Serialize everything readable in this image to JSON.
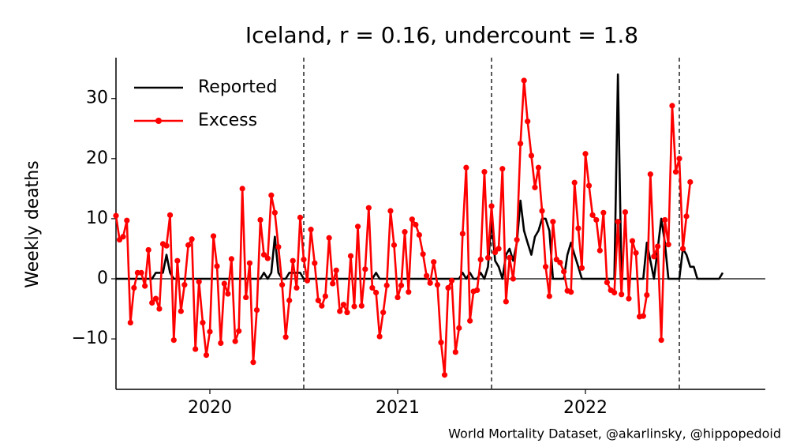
{
  "chart_data": {
    "type": "line",
    "title": "Iceland, r = 0.16, undercount = 1.8",
    "ylabel": "Weekly deaths",
    "source": "World Mortality Dataset, @akarlinsky, @hippopedoid",
    "legend": "upper left",
    "xlim": [
      2020,
      2023.458
    ],
    "ylim": [
      -18.4,
      36.8
    ],
    "xticks": [
      {
        "value": 2020.5,
        "label": "2020"
      },
      {
        "value": 2021.5,
        "label": "2021"
      },
      {
        "value": 2022.5,
        "label": "2022"
      }
    ],
    "yticks": [
      {
        "value": -10,
        "label": "−10"
      },
      0,
      10,
      20,
      30
    ],
    "vlines": [
      2021,
      2022,
      2023
    ],
    "hline": 0,
    "x": [
      2020.0,
      2020.019,
      2020.038,
      2020.058,
      2020.077,
      2020.096,
      2020.115,
      2020.135,
      2020.154,
      2020.173,
      2020.192,
      2020.212,
      2020.231,
      2020.25,
      2020.269,
      2020.288,
      2020.308,
      2020.327,
      2020.346,
      2020.365,
      2020.385,
      2020.404,
      2020.423,
      2020.442,
      2020.462,
      2020.481,
      2020.5,
      2020.519,
      2020.538,
      2020.558,
      2020.577,
      2020.596,
      2020.615,
      2020.635,
      2020.654,
      2020.673,
      2020.692,
      2020.712,
      2020.731,
      2020.75,
      2020.769,
      2020.788,
      2020.808,
      2020.827,
      2020.846,
      2020.865,
      2020.885,
      2020.904,
      2020.923,
      2020.942,
      2020.962,
      2020.981,
      2021.0,
      2021.019,
      2021.038,
      2021.058,
      2021.077,
      2021.096,
      2021.115,
      2021.135,
      2021.154,
      2021.173,
      2021.192,
      2021.212,
      2021.231,
      2021.25,
      2021.269,
      2021.288,
      2021.308,
      2021.327,
      2021.346,
      2021.365,
      2021.385,
      2021.404,
      2021.423,
      2021.442,
      2021.462,
      2021.481,
      2021.5,
      2021.519,
      2021.538,
      2021.558,
      2021.577,
      2021.596,
      2021.615,
      2021.635,
      2021.654,
      2021.673,
      2021.692,
      2021.712,
      2021.731,
      2021.75,
      2021.769,
      2021.788,
      2021.808,
      2021.827,
      2021.846,
      2021.865,
      2021.885,
      2021.904,
      2021.923,
      2021.942,
      2021.962,
      2021.981,
      2022.0,
      2022.019,
      2022.038,
      2022.058,
      2022.077,
      2022.096,
      2022.115,
      2022.135,
      2022.154,
      2022.173,
      2022.192,
      2022.212,
      2022.231,
      2022.25,
      2022.269,
      2022.288,
      2022.308,
      2022.327,
      2022.346,
      2022.365,
      2022.385,
      2022.404,
      2022.423,
      2022.442,
      2022.462,
      2022.481,
      2022.5,
      2022.519,
      2022.538,
      2022.558,
      2022.577,
      2022.596,
      2022.615,
      2022.635,
      2022.654,
      2022.673,
      2022.692,
      2022.712,
      2022.731,
      2022.75,
      2022.769,
      2022.788,
      2022.808,
      2022.827,
      2022.846,
      2022.865,
      2022.885,
      2022.904,
      2022.923,
      2022.942,
      2022.962,
      2022.981,
      2023.0,
      2023.019,
      2023.038,
      2023.058,
      2023.077,
      2023.096,
      2023.115,
      2023.135,
      2023.154,
      2023.173,
      2023.192,
      2023.212,
      2023.231
    ],
    "series": [
      {
        "name": "Reported",
        "color": "#000000",
        "markers": false,
        "values": [
          0,
          0,
          0,
          0,
          0,
          0,
          0,
          0,
          0,
          0,
          0,
          1,
          1,
          1,
          4,
          1,
          0,
          0,
          0,
          0,
          0,
          0,
          0,
          0,
          0,
          0,
          0,
          0,
          0,
          0,
          0,
          0,
          0,
          0,
          0,
          0,
          0,
          0,
          0,
          0,
          0,
          1,
          0,
          1,
          7,
          1,
          0,
          0,
          1,
          1,
          1,
          1,
          0,
          0,
          0,
          0,
          0,
          0,
          0,
          0,
          0,
          0,
          0,
          0,
          0,
          0,
          0,
          0,
          0,
          0,
          0,
          0,
          1,
          0,
          0,
          0,
          0,
          0,
          0,
          0,
          0,
          0,
          0,
          0,
          0,
          0,
          0,
          0,
          0,
          0,
          0,
          0,
          0,
          0,
          0,
          0,
          1,
          0,
          1,
          0,
          0,
          1,
          0,
          2,
          10,
          3,
          2,
          0,
          4,
          5,
          3,
          6,
          13,
          8,
          6,
          4,
          7,
          8,
          10,
          10,
          8,
          0,
          0,
          0,
          0,
          4,
          6,
          4,
          2,
          0,
          0,
          0,
          0,
          0,
          0,
          0,
          0,
          0,
          0,
          34,
          0,
          0,
          0,
          0,
          0,
          0,
          0,
          6,
          3,
          0,
          5,
          10,
          6,
          0,
          0,
          0,
          0,
          5,
          4,
          2,
          2,
          0,
          0,
          0,
          0,
          0,
          0,
          0,
          1
        ]
      },
      {
        "name": "Excess",
        "color": "#ff0000",
        "markers": true,
        "values": [
          10.5,
          6.5,
          7,
          9.7,
          -7.3,
          -1.5,
          1,
          1,
          -1.2,
          4.8,
          -4,
          -3.3,
          -5,
          5.8,
          5.5,
          10.6,
          -10.2,
          3,
          -5.4,
          -1,
          5.6,
          6.6,
          -11.7,
          -0.5,
          -7.3,
          -12.7,
          -8.8,
          7.1,
          2.1,
          -10.7,
          -0.8,
          -2.5,
          3.3,
          -10.4,
          -8.7,
          15,
          -3.1,
          2.6,
          -13.9,
          -5.2,
          9.8,
          4,
          3.4,
          13.9,
          11,
          5.3,
          -1,
          -9.7,
          -3.6,
          3,
          -1.5,
          10.2,
          3.2,
          -0.3,
          8.2,
          2.6,
          -3.6,
          -4.5,
          -2.9,
          6.8,
          -0.8,
          1.4,
          -5.4,
          -4.3,
          -5.6,
          3.8,
          -4.6,
          8.7,
          -4.5,
          1.6,
          11.8,
          -1.5,
          -2.3,
          -9.6,
          -5.6,
          -1.1,
          11.3,
          5.6,
          -3.1,
          -1.1,
          7.8,
          -2.2,
          9.9,
          9,
          7.3,
          4.1,
          0.5,
          -0.7,
          2.8,
          -1,
          -10.6,
          -16,
          -1.5,
          -0.3,
          -12.2,
          -8.2,
          7.5,
          18.5,
          -7,
          -2.1,
          -1.9,
          3.2,
          17.8,
          3.5,
          12.1,
          4.4,
          5,
          18.3,
          -3.8,
          3.5,
          0,
          6.5,
          22.5,
          33,
          26.2,
          20.5,
          15.2,
          18.5,
          11.3,
          2,
          -2.9,
          9.5,
          3.2,
          2.7,
          1.2,
          -2,
          -2.2,
          16,
          8.4,
          1.8,
          20.8,
          15.5,
          10.6,
          9.8,
          4.7,
          11,
          -0.6,
          -1.9,
          -2.3,
          9.5,
          -2.6,
          11.1,
          -3.3,
          6.3,
          4.3,
          -6.3,
          -6.2,
          -2.7,
          17.4,
          3.7,
          5.4,
          -10.2,
          9.8,
          5.7,
          28.8,
          17.8,
          20,
          5,
          10.4,
          16.1,
          null,
          null,
          null,
          null,
          null,
          null,
          null,
          null,
          null
        ]
      }
    ]
  }
}
